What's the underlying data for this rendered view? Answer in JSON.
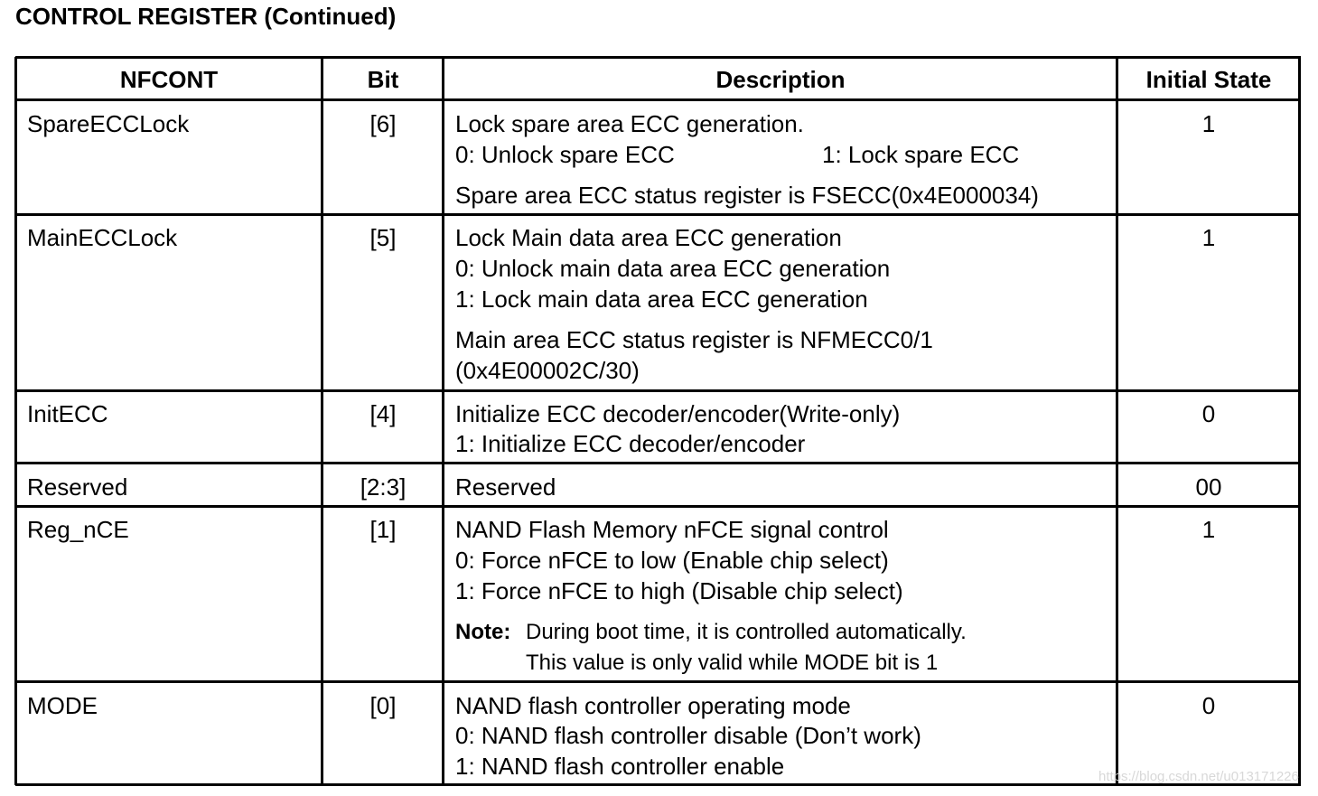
{
  "title": "CONTROL REGISTER (Continued)",
  "headers": {
    "name": "NFCONT",
    "bit": "Bit",
    "description": "Description",
    "initial": "Initial State"
  },
  "rows": [
    {
      "name": "SpareECCLock",
      "bit": "[6]",
      "initial": "1",
      "desc": [
        "Lock spare area ECC generation.",
        "0: Unlock spare ECC",
        "1: Lock spare ECC",
        "Spare area ECC status register is FSECC(0x4E000034)"
      ]
    },
    {
      "name": "MainECCLock",
      "bit": "[5]",
      "initial": "1",
      "desc": [
        "Lock Main data area ECC generation",
        "0: Unlock main data area ECC generation",
        "1: Lock main data area ECC generation",
        "Main area ECC status register is NFMECC0/1",
        "(0x4E00002C/30)"
      ]
    },
    {
      "name": "InitECC",
      "bit": "[4]",
      "initial": "0",
      "desc": [
        "Initialize ECC decoder/encoder(Write-only)",
        "1: Initialize ECC decoder/encoder"
      ]
    },
    {
      "name": "Reserved",
      "bit": "[2:3]",
      "initial": "00",
      "desc": [
        "Reserved"
      ]
    },
    {
      "name": "Reg_nCE",
      "bit": "[1]",
      "initial": "1",
      "desc": [
        "NAND Flash Memory nFCE signal control",
        "0: Force nFCE to low (Enable chip select)",
        "1: Force nFCE to high (Disable chip select)"
      ],
      "note_label": "Note:",
      "note": [
        "During boot time, it is controlled automatically.",
        "This value is only valid while MODE bit is 1"
      ]
    },
    {
      "name": "MODE",
      "bit": "[0]",
      "initial": "0",
      "desc": [
        "NAND flash controller operating mode",
        "0: NAND flash controller disable (Don’t work)",
        "1: NAND flash controller enable"
      ]
    }
  ],
  "watermark": "https://blog.csdn.net/u013171226"
}
